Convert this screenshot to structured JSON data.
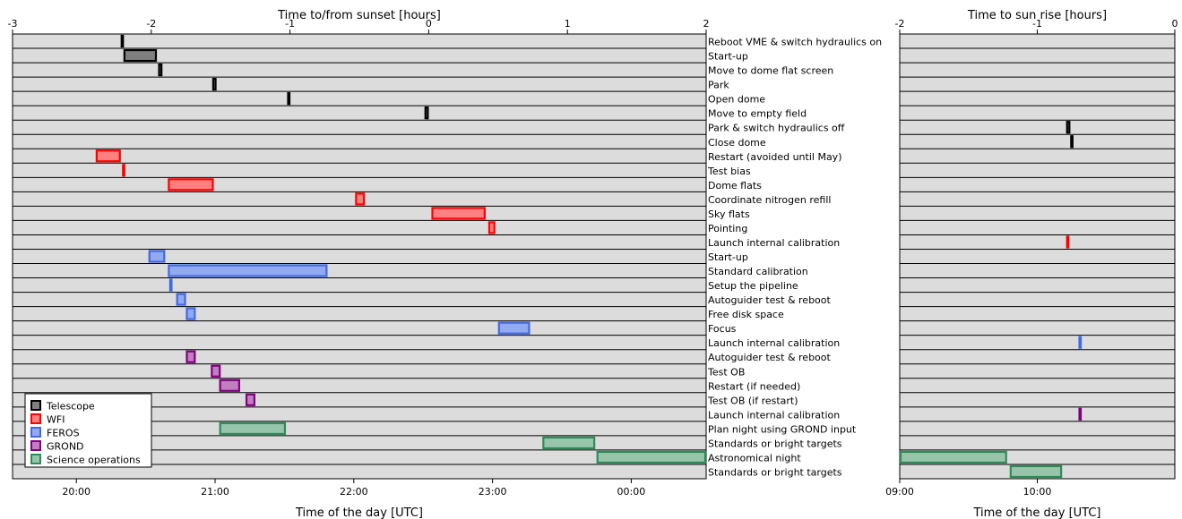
{
  "chart_data": {
    "type": "gantt",
    "legend_position": "lower-left",
    "grid": false,
    "categories": [
      {
        "key": "Telescope",
        "label": "Telescope",
        "color": "#000000",
        "fill": "#7f7f7f"
      },
      {
        "key": "WFI",
        "label": "WFI",
        "color": "#ff0000",
        "fill": "#ff8080"
      },
      {
        "key": "FEROS",
        "label": "FEROS",
        "color": "#4169e1",
        "fill": "#93aaf0"
      },
      {
        "key": "GROND",
        "label": "GROND",
        "color": "#800080",
        "fill": "#c080c0"
      },
      {
        "key": "Science",
        "label": "Science operations",
        "color": "#2e8b57",
        "fill": "#96c5ab"
      }
    ],
    "tasks": [
      "Reboot VME & switch hydraulics on",
      "Start-up",
      "Move to dome flat screen",
      "Park",
      "Open dome",
      "Move to empty field",
      "Park & switch hydraulics off",
      "Close dome",
      "Restart (avoided until May)",
      "Test bias",
      "Dome flats",
      "Coordinate nitrogen refill",
      "Sky flats",
      "Pointing",
      "Launch internal calibration",
      "Start-up",
      "Standard calibration",
      "Setup the pipeline",
      "Autoguider test & reboot",
      "Free disk space",
      "Focus",
      "Launch internal calibration",
      "Autoguider test & reboot",
      "Test OB",
      "Restart (if needed)",
      "Test OB (if restart)",
      "Launch internal calibration",
      "Plan night using GROND input",
      "Standards or bright targets",
      "Astronomical night",
      "Standards or bright targets"
    ],
    "evening": {
      "top_axis_label": "Time to/from sunset [hours]",
      "bottom_axis_label": "Time of the day [UTC]",
      "xlim_hours": [
        -3,
        2
      ],
      "top_ticks": [
        {
          "value": -3,
          "label": "-3"
        },
        {
          "value": -2,
          "label": "-2"
        },
        {
          "value": -1,
          "label": "-1"
        },
        {
          "value": 0,
          "label": "0"
        },
        {
          "value": 1,
          "label": "1"
        },
        {
          "value": 2,
          "label": "2"
        }
      ],
      "bottom_ticks": [
        {
          "value": -2.54,
          "label": "20:00"
        },
        {
          "value": -1.54,
          "label": "21:00"
        },
        {
          "value": -0.54,
          "label": "22:00"
        },
        {
          "value": 0.46,
          "label": "23:00"
        },
        {
          "value": 1.46,
          "label": "00:00"
        }
      ],
      "bars": [
        {
          "row": 0,
          "cat": "Telescope",
          "start": -2.22,
          "end": -2.2
        },
        {
          "row": 1,
          "cat": "Telescope",
          "start": -2.2,
          "end": -1.96
        },
        {
          "row": 2,
          "cat": "Telescope",
          "start": -1.95,
          "end": -1.92
        },
        {
          "row": 3,
          "cat": "Telescope",
          "start": -1.56,
          "end": -1.53
        },
        {
          "row": 4,
          "cat": "Telescope",
          "start": -1.02,
          "end": -1.0
        },
        {
          "row": 5,
          "cat": "Telescope",
          "start": -0.03,
          "end": 0.0
        },
        {
          "row": 8,
          "cat": "WFI",
          "start": -2.4,
          "end": -2.22
        },
        {
          "row": 9,
          "cat": "WFI",
          "start": -2.21,
          "end": -2.2
        },
        {
          "row": 10,
          "cat": "WFI",
          "start": -1.88,
          "end": -1.55
        },
        {
          "row": 11,
          "cat": "WFI",
          "start": -0.53,
          "end": -0.46
        },
        {
          "row": 12,
          "cat": "WFI",
          "start": 0.02,
          "end": 0.41
        },
        {
          "row": 13,
          "cat": "WFI",
          "start": 0.43,
          "end": 0.48
        },
        {
          "row": 15,
          "cat": "FEROS",
          "start": -2.02,
          "end": -1.9
        },
        {
          "row": 16,
          "cat": "FEROS",
          "start": -1.88,
          "end": -0.73
        },
        {
          "row": 17,
          "cat": "FEROS",
          "start": -1.87,
          "end": -1.85
        },
        {
          "row": 18,
          "cat": "FEROS",
          "start": -1.82,
          "end": -1.75
        },
        {
          "row": 19,
          "cat": "FEROS",
          "start": -1.75,
          "end": -1.68
        },
        {
          "row": 20,
          "cat": "FEROS",
          "start": 0.5,
          "end": 0.73
        },
        {
          "row": 22,
          "cat": "GROND",
          "start": -1.75,
          "end": -1.68
        },
        {
          "row": 23,
          "cat": "GROND",
          "start": -1.57,
          "end": -1.5
        },
        {
          "row": 24,
          "cat": "GROND",
          "start": -1.51,
          "end": -1.36
        },
        {
          "row": 25,
          "cat": "GROND",
          "start": -1.32,
          "end": -1.25
        },
        {
          "row": 27,
          "cat": "Science",
          "start": -1.51,
          "end": -1.03
        },
        {
          "row": 28,
          "cat": "Science",
          "start": 0.82,
          "end": 1.2
        },
        {
          "row": 29,
          "cat": "Science",
          "start": 1.21,
          "end": 2.0
        }
      ]
    },
    "morning": {
      "top_axis_label": "Time to sun rise [hours]",
      "bottom_axis_label": "Time of the day [UTC]",
      "xlim_hours": [
        -2,
        0
      ],
      "top_ticks": [
        {
          "value": -2,
          "label": "-2"
        },
        {
          "value": -1,
          "label": "-1"
        },
        {
          "value": 0,
          "label": "0"
        }
      ],
      "bottom_ticks": [
        {
          "value": -2.0,
          "label": "09:00"
        },
        {
          "value": -1.0,
          "label": "10:00"
        }
      ],
      "bars": [
        {
          "row": 6,
          "cat": "Telescope",
          "start": -0.79,
          "end": -0.76
        },
        {
          "row": 7,
          "cat": "Telescope",
          "start": -0.76,
          "end": -0.74
        },
        {
          "row": 14,
          "cat": "WFI",
          "start": -0.79,
          "end": -0.77
        },
        {
          "row": 21,
          "cat": "FEROS",
          "start": -0.7,
          "end": -0.68
        },
        {
          "row": 26,
          "cat": "GROND",
          "start": -0.7,
          "end": -0.68
        },
        {
          "row": 29,
          "cat": "Science",
          "start": -2.0,
          "end": -1.22
        },
        {
          "row": 30,
          "cat": "Science",
          "start": -1.2,
          "end": -0.82
        }
      ]
    }
  }
}
